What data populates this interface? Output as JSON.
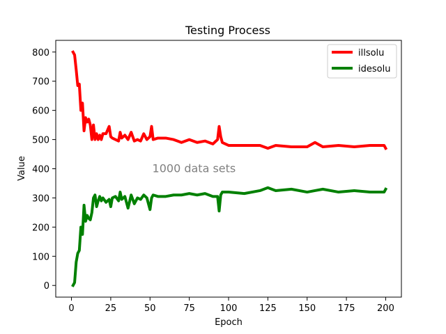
{
  "chart_data": {
    "type": "line",
    "title": "Testing Process",
    "xlabel": "Epoch",
    "ylabel": "Value",
    "xlim": [
      -10,
      210
    ],
    "ylim": [
      -40,
      840
    ],
    "xticks": [
      0,
      25,
      50,
      75,
      100,
      125,
      150,
      175,
      200
    ],
    "yticks": [
      0,
      100,
      200,
      300,
      400,
      500,
      600,
      700,
      800
    ],
    "grid": false,
    "legend": "top-right",
    "annotation": {
      "text": "1000 data sets",
      "x": 78,
      "y": 400,
      "color": "#808080"
    },
    "series": [
      {
        "name": "illsolu",
        "color": "#ff0000",
        "x": [
          1,
          2,
          3,
          4,
          5,
          6,
          7,
          8,
          9,
          10,
          11,
          12,
          13,
          14,
          15,
          16,
          17,
          18,
          19,
          20,
          22,
          24,
          25,
          26,
          28,
          30,
          31,
          32,
          34,
          36,
          38,
          40,
          42,
          44,
          46,
          48,
          50,
          51,
          52,
          55,
          60,
          65,
          70,
          75,
          80,
          85,
          90,
          93,
          94,
          95,
          96,
          100,
          110,
          120,
          125,
          130,
          140,
          150,
          155,
          160,
          170,
          180,
          190,
          199,
          200
        ],
        "y": [
          800,
          790,
          740,
          685,
          690,
          600,
          625,
          530,
          575,
          560,
          570,
          550,
          500,
          550,
          500,
          520,
          500,
          515,
          500,
          520,
          520,
          545,
          510,
          505,
          500,
          495,
          525,
          505,
          515,
          500,
          525,
          495,
          500,
          495,
          520,
          500,
          510,
          545,
          500,
          505,
          505,
          500,
          490,
          500,
          490,
          495,
          485,
          500,
          545,
          510,
          490,
          480,
          480,
          480,
          470,
          480,
          475,
          475,
          490,
          475,
          480,
          475,
          480,
          480,
          470
        ]
      },
      {
        "name": "idesolu",
        "color": "#008000",
        "x": [
          1,
          2,
          3,
          4,
          5,
          6,
          7,
          8,
          9,
          10,
          11,
          12,
          13,
          14,
          15,
          16,
          17,
          18,
          19,
          20,
          22,
          24,
          25,
          26,
          28,
          30,
          31,
          32,
          34,
          36,
          38,
          40,
          42,
          44,
          46,
          48,
          50,
          51,
          52,
          55,
          60,
          65,
          70,
          75,
          80,
          85,
          90,
          93,
          94,
          95,
          96,
          100,
          110,
          120,
          125,
          130,
          140,
          150,
          155,
          160,
          170,
          180,
          190,
          199,
          200
        ],
        "y": [
          0,
          10,
          80,
          110,
          120,
          200,
          175,
          275,
          220,
          240,
          230,
          225,
          250,
          300,
          310,
          270,
          290,
          305,
          290,
          300,
          285,
          295,
          270,
          300,
          305,
          290,
          320,
          295,
          305,
          265,
          310,
          280,
          300,
          295,
          310,
          300,
          260,
          300,
          310,
          305,
          305,
          310,
          310,
          315,
          310,
          315,
          305,
          305,
          255,
          310,
          320,
          320,
          315,
          325,
          335,
          325,
          330,
          320,
          325,
          330,
          320,
          325,
          320,
          320,
          330
        ]
      }
    ]
  }
}
